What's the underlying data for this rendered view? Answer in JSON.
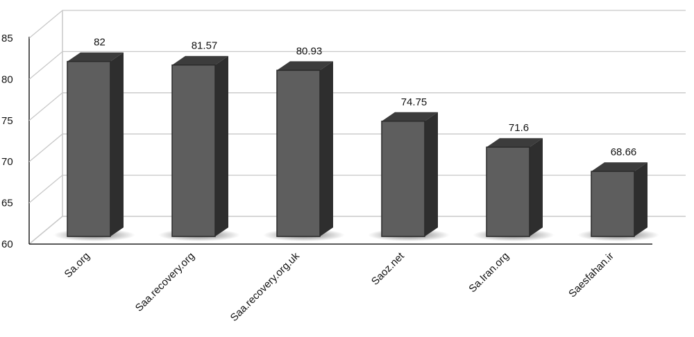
{
  "chart_data": {
    "type": "bar",
    "title": "",
    "xlabel": "",
    "ylabel": "",
    "categories": [
      "Sa.org",
      "Saa.recovery.org",
      "Saa.recovery.org.uk",
      "Saoz.net",
      "Sa.Iran.org",
      "Saesfahan.ir"
    ],
    "values": [
      82,
      81.57,
      80.93,
      74.75,
      71.6,
      68.66
    ],
    "value_labels": [
      "82",
      "81.57",
      "80.93",
      "74.75",
      "71.6",
      "68.66"
    ],
    "ylim": [
      60,
      85
    ],
    "yticks": [
      "60",
      "65",
      "70",
      "75",
      "80",
      "85"
    ],
    "grid": true,
    "style": "3d",
    "colors": {
      "bar_front": "#5e5e5e",
      "bar_side": "#2e2e2e",
      "bar_top": "#3c3c3c",
      "grid": "#c8c8c8"
    }
  }
}
